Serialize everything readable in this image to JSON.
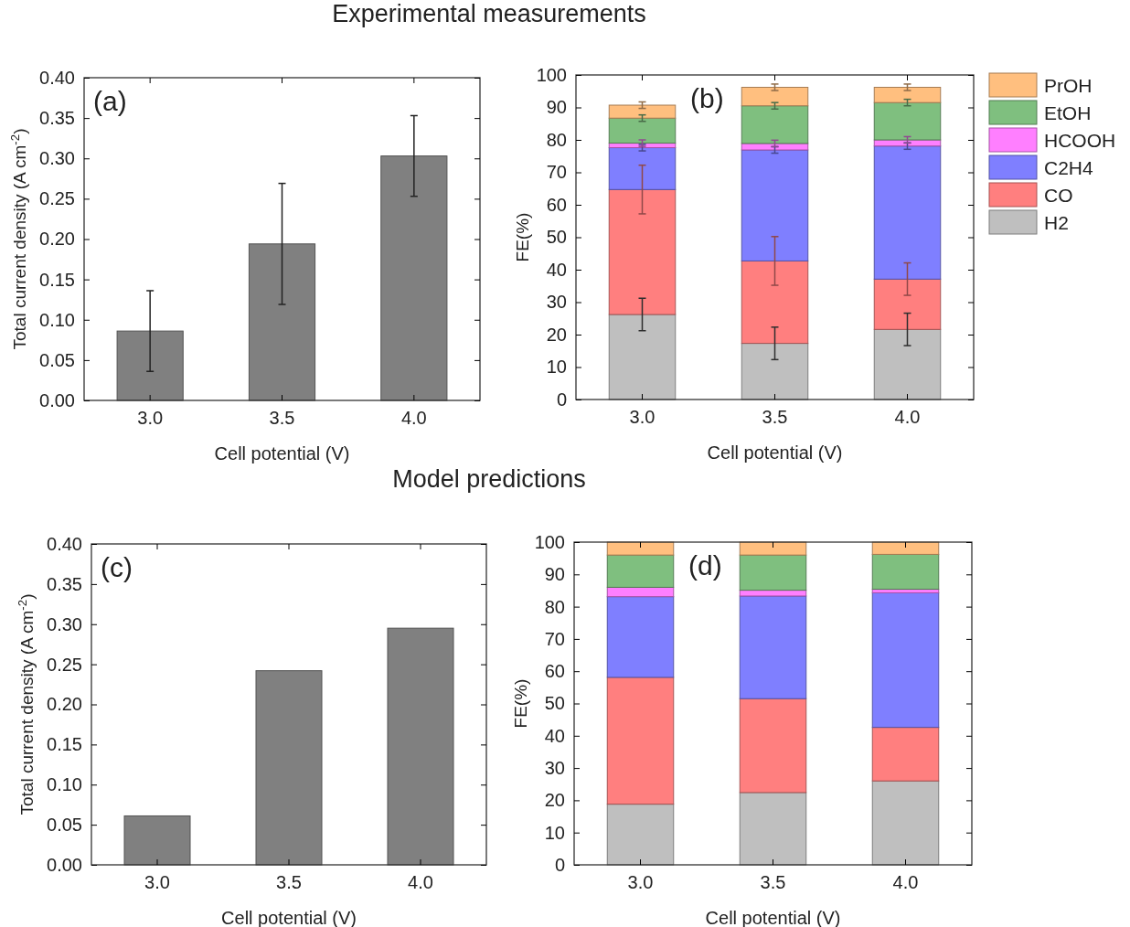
{
  "chart_data": [
    {
      "type": "bar",
      "title": "Experimental measurements",
      "xlabel": "Cell potential (V)",
      "ylabel": "Total current density (A cm$^{-2}$)",
      "categories": [
        "3.0",
        "3.5",
        "4.0"
      ],
      "values": [
        0.086,
        0.194,
        0.303
      ],
      "errors": [
        0.05,
        0.075,
        0.05
      ],
      "color": "#808080",
      "ylim": [
        0,
        0.4
      ],
      "yticks": [
        {
          "value": 0,
          "label": "0.00"
        },
        {
          "value": 0.05,
          "label": "0.05"
        },
        {
          "value": 0.1,
          "label": "0.10"
        },
        {
          "value": 0.15,
          "label": "0.15"
        },
        {
          "value": 0.2,
          "label": "0.20"
        },
        {
          "value": 0.25,
          "label": "0.25"
        },
        {
          "value": 0.3,
          "label": "0.30"
        },
        {
          "value": 0.35,
          "label": "0.35"
        },
        {
          "value": 0.4,
          "label": "0.40"
        }
      ],
      "annotations": [
        "(a)"
      ]
    },
    {
      "type": "bar",
      "stacked": true,
      "xlabel": "Cell potential (V)",
      "ylabel": "FE(%)",
      "categories": [
        "3.0",
        "3.5",
        "4.0"
      ],
      "legend": "right",
      "ylim": [
        0,
        100
      ],
      "yticks": [
        0,
        10,
        20,
        30,
        40,
        50,
        60,
        70,
        80,
        90,
        100
      ],
      "annotations": [
        "(b)"
      ],
      "series": [
        {
          "name": "H2",
          "color": "#bfbfbf",
          "values": [
            26.2,
            17.3,
            21.6
          ],
          "errors": [
            5,
            5,
            5
          ]
        },
        {
          "name": "CO",
          "color": "#ff7f7f",
          "values": [
            38.5,
            25.4,
            15.5
          ],
          "errors": [
            7.5,
            7.5,
            5
          ]
        },
        {
          "name": "C2H4",
          "color": "#7f7fff",
          "values": [
            12.9,
            34.2,
            41.0
          ],
          "errors": [
            1,
            1,
            1
          ]
        },
        {
          "name": "HCOOH",
          "color": "#ff7fff",
          "values": [
            1.4,
            2.0,
            1.9
          ],
          "errors": [
            1,
            1,
            1
          ]
        },
        {
          "name": "EtOH",
          "color": "#7fbf7f",
          "values": [
            7.7,
            11.6,
            11.5
          ],
          "errors": [
            1,
            1,
            1
          ]
        },
        {
          "name": "PrOH",
          "color": "#ffbf7f",
          "values": [
            4.0,
            5.7,
            4.7
          ],
          "errors": [
            1,
            1,
            1
          ]
        }
      ]
    },
    {
      "type": "bar",
      "title": "Model predictions",
      "xlabel": "Cell potential (V)",
      "ylabel": "Total current density (A cm$^{-2}$)",
      "categories": [
        "3.0",
        "3.5",
        "4.0"
      ],
      "values": [
        0.061,
        0.242,
        0.295
      ],
      "color": "#808080",
      "ylim": [
        0,
        0.4
      ],
      "yticks": [
        {
          "value": 0,
          "label": "0.00"
        },
        {
          "value": 0.05,
          "label": "0.05"
        },
        {
          "value": 0.1,
          "label": "0.10"
        },
        {
          "value": 0.15,
          "label": "0.15"
        },
        {
          "value": 0.2,
          "label": "0.20"
        },
        {
          "value": 0.25,
          "label": "0.25"
        },
        {
          "value": 0.3,
          "label": "0.30"
        },
        {
          "value": 0.35,
          "label": "0.35"
        },
        {
          "value": 0.4,
          "label": "0.40"
        }
      ],
      "annotations": [
        "(c)"
      ]
    },
    {
      "type": "bar",
      "stacked": true,
      "xlabel": "Cell potential (V)",
      "ylabel": "FE(%)",
      "categories": [
        "3.0",
        "3.5",
        "4.0"
      ],
      "ylim": [
        0,
        100
      ],
      "yticks": [
        0,
        10,
        20,
        30,
        40,
        50,
        60,
        70,
        80,
        90,
        100
      ],
      "annotations": [
        "(d)"
      ],
      "series": [
        {
          "color": "#bfbfbf",
          "values": [
            18.8,
            22.4,
            26.0
          ]
        },
        {
          "color": "#ff7f7f",
          "values": [
            39.3,
            29.1,
            16.6
          ]
        },
        {
          "color": "#7f7fff",
          "values": [
            25.0,
            31.8,
            41.7
          ]
        },
        {
          "color": "#ff7fff",
          "values": [
            2.9,
            1.8,
            1.1
          ]
        },
        {
          "color": "#7fbf7f",
          "values": [
            10.0,
            10.9,
            10.8
          ]
        },
        {
          "color": "#ffbf7f",
          "values": [
            4.0,
            4.0,
            3.8
          ]
        }
      ]
    }
  ]
}
